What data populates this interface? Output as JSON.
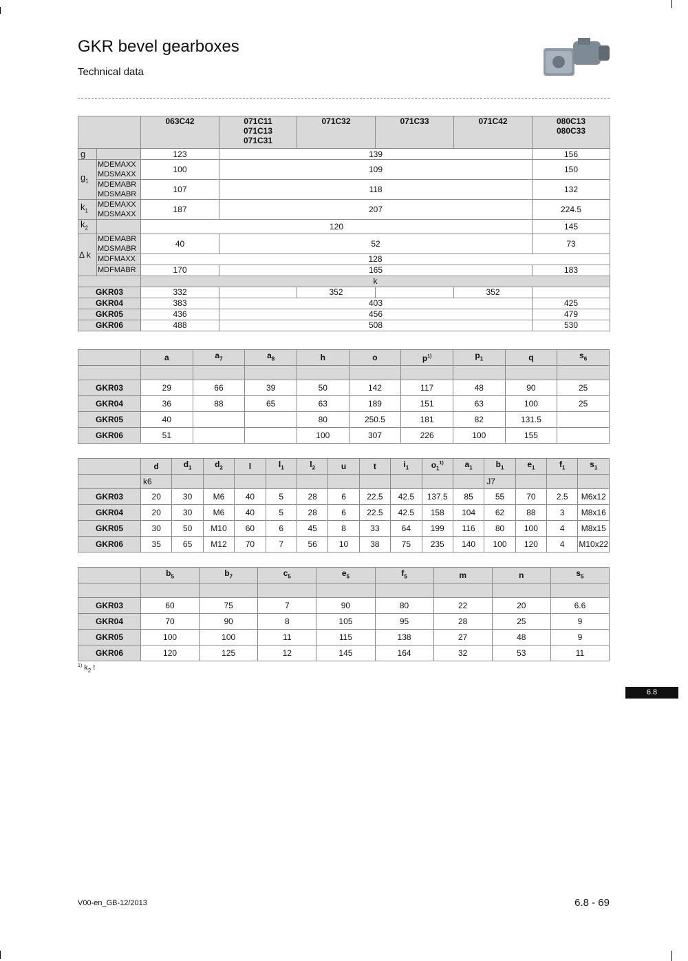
{
  "header": {
    "title": "GKR bevel gearboxes",
    "subtitle": "Technical data"
  },
  "table1": {
    "models": [
      "063C42",
      "071C11\n071C13\n071C31",
      "071C32",
      "071C33",
      "071C42",
      "080C13\n080C33"
    ],
    "g": {
      "label": "g",
      "v": [
        "123",
        "139",
        "156"
      ]
    },
    "g1": {
      "label": "g",
      "sub": "1",
      "r1": {
        "motors": "MDEMAXX\nMDSMAXX",
        "v": [
          "100",
          "109",
          "150"
        ]
      },
      "r2": {
        "motors": "MDEMABR\nMDSMABR",
        "v": [
          "107",
          "118",
          "132"
        ]
      }
    },
    "k1": {
      "label": "k",
      "sub": "1",
      "motors": "MDEMAXX\nMDSMAXX",
      "v": [
        "187",
        "207",
        "224.5"
      ]
    },
    "k2": {
      "label": "k",
      "sub": "2",
      "v": [
        "120",
        "145"
      ]
    },
    "dk": {
      "label": "Δ k",
      "r1": {
        "motors": "MDEMABR\nMDSMABR",
        "v": [
          "40",
          "52",
          "73"
        ]
      },
      "r2": {
        "motors": "MDFMAXX",
        "v": [
          "128"
        ]
      },
      "r3": {
        "motors": "MDFMABR",
        "v": [
          "170",
          "165",
          "183"
        ]
      }
    },
    "k_label": "k",
    "gkr": [
      {
        "name": "GKR03",
        "v": [
          "332",
          "",
          "352",
          "",
          "352",
          ""
        ]
      },
      {
        "name": "GKR04",
        "v": [
          "383",
          "403",
          "425"
        ]
      },
      {
        "name": "GKR05",
        "v": [
          "436",
          "456",
          "479"
        ]
      },
      {
        "name": "GKR06",
        "v": [
          "488",
          "508",
          "530"
        ]
      }
    ]
  },
  "table2": {
    "headers": [
      {
        "b": "a"
      },
      {
        "b": "a",
        "s": "7"
      },
      {
        "b": "a",
        "s": "8"
      },
      {
        "b": "h"
      },
      {
        "b": "o"
      },
      {
        "b": "p",
        "sup": "1)"
      },
      {
        "b": "p",
        "s": "1"
      },
      {
        "b": "q"
      },
      {
        "b": "s",
        "s": "6"
      }
    ],
    "subheaders": [
      "",
      "",
      "",
      "",
      "",
      "",
      "",
      "",
      ""
    ],
    "rows": [
      {
        "name": "GKR03",
        "v": [
          "29",
          "66",
          "39",
          "50",
          "142",
          "117",
          "48",
          "90",
          "25"
        ]
      },
      {
        "name": "GKR04",
        "v": [
          "36",
          "88",
          "65",
          "63",
          "189",
          "151",
          "63",
          "100",
          "25"
        ]
      },
      {
        "name": "GKR05",
        "v": [
          "40",
          "",
          "",
          "80",
          "250.5",
          "181",
          "82",
          "131.5",
          ""
        ]
      },
      {
        "name": "GKR06",
        "v": [
          "51",
          "",
          "",
          "100",
          "307",
          "226",
          "100",
          "155",
          ""
        ]
      }
    ]
  },
  "table3": {
    "headers": [
      {
        "b": "d"
      },
      {
        "b": "d",
        "s": "1"
      },
      {
        "b": "d",
        "s": "2"
      },
      {
        "b": "l"
      },
      {
        "b": "l",
        "s": "1"
      },
      {
        "b": "l",
        "s": "2"
      },
      {
        "b": "u"
      },
      {
        "b": "t"
      },
      {
        "b": "i",
        "s": "1"
      },
      {
        "b": "o",
        "s": "1",
        "sup": "1)"
      },
      {
        "b": "a",
        "s": "1"
      },
      {
        "b": "b",
        "s": "1"
      },
      {
        "b": "e",
        "s": "1"
      },
      {
        "b": "f",
        "s": "1"
      },
      {
        "b": "s",
        "s": "1"
      }
    ],
    "subheaders": [
      "k6",
      "",
      "",
      "",
      "",
      "",
      "",
      "",
      "",
      "",
      "",
      "J7",
      "",
      "",
      ""
    ],
    "rows": [
      {
        "name": "GKR03",
        "v": [
          "20",
          "30",
          "M6",
          "40",
          "5",
          "28",
          "6",
          "22.5",
          "42.5",
          "137.5",
          "85",
          "55",
          "70",
          "2.5",
          "M6x12"
        ]
      },
      {
        "name": "GKR04",
        "v": [
          "20",
          "30",
          "M6",
          "40",
          "5",
          "28",
          "6",
          "22.5",
          "42.5",
          "158",
          "104",
          "62",
          "88",
          "3",
          "M8x16"
        ]
      },
      {
        "name": "GKR05",
        "v": [
          "30",
          "50",
          "M10",
          "60",
          "6",
          "45",
          "8",
          "33",
          "64",
          "199",
          "116",
          "80",
          "100",
          "4",
          "M8x15"
        ]
      },
      {
        "name": "GKR06",
        "v": [
          "35",
          "65",
          "M12",
          "70",
          "7",
          "56",
          "10",
          "38",
          "75",
          "235",
          "140",
          "100",
          "120",
          "4",
          "M10x22"
        ]
      }
    ]
  },
  "table4": {
    "headers": [
      {
        "b": "b",
        "s": "5"
      },
      {
        "b": "b",
        "s": "7"
      },
      {
        "b": "c",
        "s": "5"
      },
      {
        "b": "e",
        "s": "5"
      },
      {
        "b": "f",
        "s": "5"
      },
      {
        "b": "m"
      },
      {
        "b": "n"
      },
      {
        "b": "s",
        "s": "5"
      }
    ],
    "subheaders": [
      "",
      "",
      "",
      "",
      "",
      "",
      "",
      ""
    ],
    "rows": [
      {
        "name": "GKR03",
        "v": [
          "60",
          "75",
          "7",
          "90",
          "80",
          "22",
          "20",
          "6.6"
        ]
      },
      {
        "name": "GKR04",
        "v": [
          "70",
          "90",
          "8",
          "105",
          "95",
          "28",
          "25",
          "9"
        ]
      },
      {
        "name": "GKR05",
        "v": [
          "100",
          "100",
          "11",
          "115",
          "138",
          "27",
          "48",
          "9"
        ]
      },
      {
        "name": "GKR06",
        "v": [
          "120",
          "125",
          "12",
          "145",
          "164",
          "32",
          "53",
          "11"
        ]
      }
    ]
  },
  "footnote": {
    "mark": "1)",
    "text": "k",
    "sub": "2",
    "tail": " !"
  },
  "section_badge": "6.8",
  "footer": {
    "version": "V00-en_GB-12/2013",
    "page": "6.8 - 69"
  }
}
